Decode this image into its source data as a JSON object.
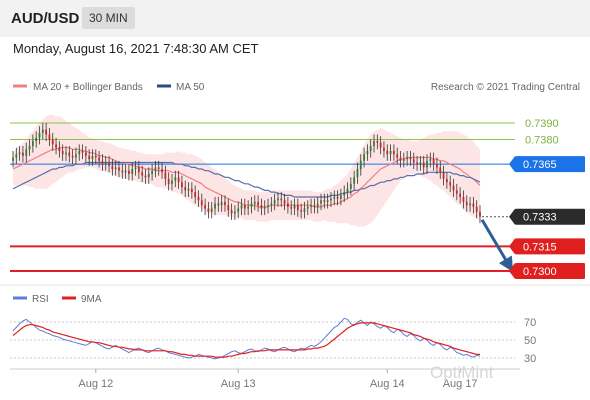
{
  "header": {
    "pair": "AUD/USD",
    "timeframe": "30 MIN",
    "datetime": "Monday, August 16, 2021 7:48:30 AM CET"
  },
  "legend": {
    "ma20_label": "MA 20 + Bollinger Bands",
    "ma50_label": "MA 50",
    "credit": "Research © 2021 Trading Central",
    "rsi_label": "RSI",
    "rsi_ma_label": "9MA"
  },
  "watermark": "OptiMint",
  "colors": {
    "candle_up": "#2e7d32",
    "candle_down": "#c62828",
    "ma20": "#f08080",
    "band_fill": "#fde0e0",
    "ma50": "#5a6fa8",
    "resistance": "#8bc34a",
    "current": "#1a73e8",
    "support": "#e02020",
    "arrow": "#2f5d96",
    "rsi": "#5b7fd6",
    "rsi_ma": "#e02020"
  },
  "chart_data": [
    {
      "type": "candlestick",
      "x_ticks": [
        "Aug 12",
        "Aug 13",
        "Aug 14",
        "Aug 17"
      ],
      "y_range": [
        0.7292,
        0.74
      ],
      "levels": [
        {
          "value": 0.739,
          "label": "0.7390",
          "kind": "resistance"
        },
        {
          "value": 0.738,
          "label": "0.7380",
          "kind": "resistance"
        },
        {
          "value": 0.7365,
          "label": "0.7365",
          "kind": "pivot"
        },
        {
          "value": 0.7333,
          "label": "0.7333",
          "kind": "last"
        },
        {
          "value": 0.7315,
          "label": "0.7315",
          "kind": "support"
        },
        {
          "value": 0.73,
          "label": "0.7300",
          "kind": "support"
        }
      ],
      "close": [
        0.7369,
        0.7371,
        0.7372,
        0.737,
        0.7374,
        0.7376,
        0.7379,
        0.7381,
        0.7384,
        0.7386,
        0.7383,
        0.738,
        0.7377,
        0.7375,
        0.7373,
        0.7371,
        0.7372,
        0.737,
        0.7369,
        0.7371,
        0.7373,
        0.7372,
        0.737,
        0.7368,
        0.737,
        0.7369,
        0.7367,
        0.7365,
        0.7366,
        0.7364,
        0.7362,
        0.7363,
        0.7361,
        0.736,
        0.7361,
        0.7359,
        0.7362,
        0.7363,
        0.736,
        0.7358,
        0.7357,
        0.7359,
        0.7361,
        0.7363,
        0.7362,
        0.736,
        0.7356,
        0.7353,
        0.7355,
        0.7357,
        0.7354,
        0.7351,
        0.7349,
        0.735,
        0.7348,
        0.7345,
        0.7343,
        0.734,
        0.7338,
        0.7336,
        0.7338,
        0.7341,
        0.734,
        0.7342,
        0.734,
        0.7337,
        0.7335,
        0.7336,
        0.7338,
        0.734,
        0.7338,
        0.7339,
        0.7341,
        0.7342,
        0.734,
        0.7338,
        0.7339,
        0.734,
        0.7341,
        0.7343,
        0.7344,
        0.7343,
        0.7341,
        0.7339,
        0.7338,
        0.734,
        0.7337,
        0.7336,
        0.7338,
        0.7339,
        0.734,
        0.7339,
        0.7341,
        0.7343,
        0.7342,
        0.7343,
        0.7344,
        0.7345,
        0.7344,
        0.7346,
        0.7348,
        0.735,
        0.7353,
        0.7357,
        0.7362,
        0.7367,
        0.7371,
        0.7373,
        0.7376,
        0.7379,
        0.7378,
        0.7375,
        0.7373,
        0.7371,
        0.7373,
        0.7371,
        0.7369,
        0.7367,
        0.7368,
        0.7369,
        0.7368,
        0.7366,
        0.7365,
        0.7366,
        0.7363,
        0.7367,
        0.7368,
        0.7365,
        0.7363,
        0.736,
        0.7356,
        0.7354,
        0.7352,
        0.7349,
        0.7347,
        0.7345,
        0.7342,
        0.734,
        0.7341,
        0.7339,
        0.7336,
        0.7333
      ],
      "ma20": [
        0.7362,
        0.7363,
        0.7364,
        0.7365,
        0.7366,
        0.7367,
        0.7368,
        0.7369,
        0.737,
        0.7371,
        0.7372,
        0.7373,
        0.7374,
        0.7374,
        0.7375,
        0.7375,
        0.7375,
        0.7375,
        0.7374,
        0.7374,
        0.7374,
        0.7373,
        0.7373,
        0.7372,
        0.7372,
        0.7371,
        0.737,
        0.737,
        0.7369,
        0.7369,
        0.7368,
        0.7367,
        0.7366,
        0.7366,
        0.7365,
        0.7365,
        0.7364,
        0.7364,
        0.7363,
        0.7363,
        0.7362,
        0.7362,
        0.7362,
        0.7361,
        0.7361,
        0.7361,
        0.7361,
        0.7361,
        0.736,
        0.736,
        0.736,
        0.7359,
        0.7358,
        0.7357,
        0.7356,
        0.7355,
        0.7354,
        0.7353,
        0.7351,
        0.735,
        0.7349,
        0.7348,
        0.7347,
        0.7346,
        0.7345,
        0.7344,
        0.7343,
        0.7342,
        0.7342,
        0.7341,
        0.734,
        0.734,
        0.734,
        0.734,
        0.7339,
        0.7339,
        0.7339,
        0.7339,
        0.734,
        0.734,
        0.734,
        0.734,
        0.734,
        0.734,
        0.734,
        0.734,
        0.734,
        0.734,
        0.734,
        0.734,
        0.734,
        0.7339,
        0.7339,
        0.7339,
        0.734,
        0.734,
        0.734,
        0.7341,
        0.7341,
        0.7342,
        0.7343,
        0.7344,
        0.7345,
        0.7347,
        0.7348,
        0.735,
        0.7352,
        0.7354,
        0.7356,
        0.7358,
        0.736,
        0.7362,
        0.7363,
        0.7364,
        0.7365,
        0.7366,
        0.7367,
        0.7368,
        0.7368,
        0.7369,
        0.7369,
        0.7369,
        0.7369,
        0.7369,
        0.7369,
        0.7369,
        0.7369,
        0.7368,
        0.7368,
        0.7367,
        0.7367,
        0.7366,
        0.7365,
        0.7364,
        0.7363,
        0.7362,
        0.736,
        0.7359,
        0.7357,
        0.7356,
        0.7354,
        0.7352
      ],
      "ma50": [
        0.735,
        0.7351,
        0.7352,
        0.7353,
        0.7354,
        0.7355,
        0.7356,
        0.7357,
        0.7358,
        0.7359,
        0.736,
        0.7361,
        0.7362,
        0.7362,
        0.7363,
        0.7363,
        0.7364,
        0.7364,
        0.7364,
        0.7365,
        0.7365,
        0.7365,
        0.7366,
        0.7366,
        0.7366,
        0.7366,
        0.7366,
        0.7366,
        0.7366,
        0.7366,
        0.7366,
        0.7366,
        0.7366,
        0.7366,
        0.7366,
        0.7366,
        0.7366,
        0.7366,
        0.7366,
        0.7366,
        0.7366,
        0.7366,
        0.7366,
        0.7366,
        0.7366,
        0.7366,
        0.7366,
        0.7366,
        0.7366,
        0.7365,
        0.7365,
        0.7365,
        0.7364,
        0.7364,
        0.7363,
        0.7363,
        0.7362,
        0.7362,
        0.7361,
        0.7361,
        0.736,
        0.7359,
        0.7359,
        0.7358,
        0.7357,
        0.7357,
        0.7356,
        0.7355,
        0.7355,
        0.7354,
        0.7353,
        0.7353,
        0.7352,
        0.7351,
        0.7351,
        0.735,
        0.7349,
        0.7349,
        0.7348,
        0.7348,
        0.7347,
        0.7347,
        0.7346,
        0.7346,
        0.7346,
        0.7345,
        0.7345,
        0.7345,
        0.7345,
        0.7345,
        0.7345,
        0.7345,
        0.7345,
        0.7345,
        0.7345,
        0.7345,
        0.7346,
        0.7346,
        0.7346,
        0.7347,
        0.7347,
        0.7348,
        0.7348,
        0.7349,
        0.7349,
        0.735,
        0.735,
        0.7351,
        0.7352,
        0.7352,
        0.7353,
        0.7354,
        0.7354,
        0.7355,
        0.7355,
        0.7356,
        0.7356,
        0.7357,
        0.7357,
        0.7358,
        0.7358,
        0.7358,
        0.7359,
        0.7359,
        0.7359,
        0.736,
        0.736,
        0.736,
        0.736,
        0.736,
        0.736,
        0.736,
        0.736,
        0.7359,
        0.7359,
        0.7358,
        0.7358,
        0.7357,
        0.7357,
        0.7356,
        0.7355,
        0.7354
      ],
      "bb_width": [
        0.001,
        0.0011,
        0.0012,
        0.0013,
        0.0014,
        0.0016,
        0.0017,
        0.0019,
        0.002,
        0.0021,
        0.0022,
        0.0022,
        0.0021,
        0.002,
        0.0019,
        0.0018,
        0.0016,
        0.0015,
        0.0014,
        0.0013,
        0.0012,
        0.0011,
        0.001,
        0.0009,
        0.0009,
        0.0009,
        0.0009,
        0.0009,
        0.0009,
        0.0009,
        0.0009,
        0.0009,
        0.0009,
        0.0009,
        0.0009,
        0.0009,
        0.0009,
        0.0009,
        0.0009,
        0.0009,
        0.0009,
        0.0009,
        0.0009,
        0.001,
        0.001,
        0.001,
        0.0011,
        0.0011,
        0.0012,
        0.0012,
        0.0013,
        0.0013,
        0.0014,
        0.0014,
        0.0015,
        0.0015,
        0.0015,
        0.0015,
        0.0015,
        0.0015,
        0.0014,
        0.0014,
        0.0013,
        0.0012,
        0.0011,
        0.0011,
        0.001,
        0.001,
        0.0009,
        0.0009,
        0.0009,
        0.0009,
        0.0009,
        0.0009,
        0.0009,
        0.0009,
        0.0009,
        0.0009,
        0.0009,
        0.0009,
        0.0009,
        0.0009,
        0.0009,
        0.0009,
        0.0009,
        0.0009,
        0.0009,
        0.0009,
        0.0009,
        0.0009,
        0.0009,
        0.0009,
        0.0009,
        0.0009,
        0.0009,
        0.001,
        0.001,
        0.0011,
        0.0012,
        0.0013,
        0.0014,
        0.0015,
        0.0017,
        0.0019,
        0.0021,
        0.0023,
        0.0025,
        0.0026,
        0.0027,
        0.0027,
        0.0026,
        0.0025,
        0.0023,
        0.0021,
        0.0019,
        0.0017,
        0.0015,
        0.0013,
        0.0012,
        0.0011,
        0.001,
        0.001,
        0.001,
        0.0011,
        0.0012,
        0.0013,
        0.0014,
        0.0015,
        0.0016,
        0.0017,
        0.0018,
        0.0019,
        0.002,
        0.0021,
        0.0022,
        0.0022,
        0.0023,
        0.0023,
        0.0023,
        0.0023,
        0.0022,
        0.0022
      ],
      "forecast_arrow": {
        "from": 0.7333,
        "to": 0.73
      }
    },
    {
      "type": "line",
      "series": [
        {
          "name": "RSI",
          "values": [
            60,
            64,
            68,
            71,
            73,
            70,
            67,
            64,
            61,
            60,
            58,
            57,
            55,
            54,
            53,
            51,
            50,
            49,
            48,
            47,
            46,
            45,
            44,
            46,
            48,
            47,
            45,
            43,
            41,
            40,
            42,
            44,
            42,
            40,
            38,
            36,
            38,
            40,
            41,
            39,
            37,
            36,
            38,
            40,
            41,
            39,
            38,
            36,
            35,
            34,
            33,
            32,
            31,
            30,
            31,
            32,
            34,
            33,
            32,
            31,
            30,
            29,
            30,
            31,
            33,
            35,
            37,
            38,
            36,
            35,
            37,
            39,
            40,
            38,
            37,
            39,
            41,
            40,
            38,
            37,
            39,
            41,
            42,
            40,
            38,
            37,
            39,
            41,
            40,
            42,
            44,
            43,
            45,
            48,
            52,
            56,
            60,
            64,
            66,
            70,
            74,
            73,
            68,
            66,
            70,
            72,
            69,
            66,
            70,
            68,
            65,
            63,
            66,
            64,
            60,
            58,
            62,
            60,
            56,
            54,
            57,
            55,
            51,
            49,
            52,
            50,
            46,
            44,
            47,
            45,
            41,
            39,
            42,
            40,
            36,
            35,
            33,
            34,
            32,
            31,
            33,
            32
          ]
        },
        {
          "name": "9MA",
          "values": [
            55,
            58,
            61,
            64,
            66,
            67,
            67,
            66,
            65,
            64,
            62,
            61,
            59,
            58,
            57,
            56,
            55,
            54,
            53,
            52,
            51,
            50,
            49,
            48,
            48,
            47,
            47,
            46,
            45,
            44,
            43,
            43,
            42,
            42,
            41,
            40,
            40,
            39,
            39,
            39,
            38,
            38,
            38,
            38,
            38,
            38,
            38,
            37,
            37,
            36,
            35,
            34,
            34,
            33,
            33,
            32,
            32,
            32,
            32,
            32,
            32,
            31,
            31,
            31,
            31,
            32,
            32,
            33,
            34,
            35,
            35,
            36,
            37,
            37,
            38,
            38,
            38,
            39,
            39,
            39,
            39,
            39,
            39,
            39,
            39,
            39,
            39,
            39,
            39,
            40,
            40,
            41,
            41,
            42,
            43,
            45,
            48,
            51,
            54,
            57,
            60,
            63,
            65,
            67,
            68,
            69,
            69,
            69,
            69,
            69,
            68,
            67,
            66,
            65,
            64,
            63,
            62,
            61,
            60,
            59,
            58,
            56,
            55,
            54,
            52,
            51,
            50,
            48,
            47,
            46,
            45,
            44,
            43,
            41,
            40,
            39,
            38,
            37,
            36,
            35,
            34,
            34
          ]
        }
      ],
      "y_ticks": [
        70,
        50,
        30
      ],
      "y_range": [
        18,
        82
      ]
    }
  ]
}
